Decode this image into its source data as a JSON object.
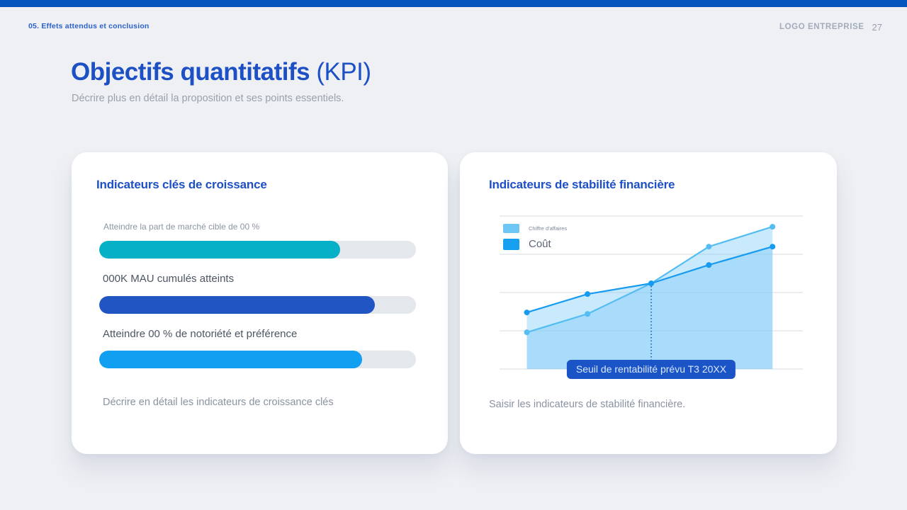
{
  "theme": {
    "accent_bar": "#0455be",
    "title_blue": "#1d50c4",
    "page_bg": "#eef0f4",
    "card_bg": "#ffffff",
    "track": "#e4e7ec",
    "tooltip_bg": "#1b54c6",
    "grid": "#d9dbdf"
  },
  "page": {
    "breadcrumb": "05. Effets attendus et conclusion",
    "logo": "LOGO ENTREPRISE",
    "page_number": "27",
    "title_main": "Objectifs quantitatifs",
    "title_suffix": " (KPI)",
    "subtitle": "Décrire plus en détail la proposition et ses points essentiels."
  },
  "growth_card": {
    "title": "Indicateurs clés de croissance",
    "bars": [
      {
        "label": "Atteindre la part de marché cible de 00 %",
        "value_pct": 76,
        "color": "#06b0c7"
      },
      {
        "label": "000K MAU cumulés atteints",
        "value_pct": 87,
        "color": "#2155c4"
      },
      {
        "label": "Atteindre 00 % de notoriété et préférence",
        "value_pct": 83,
        "color": "#119ff2"
      }
    ],
    "footer": "Décrire en détail les indicateurs de croissance clés"
  },
  "stability_card": {
    "title": "Indicateurs de stabilité financière",
    "footer": "Saisir les indicateurs de stabilité financière."
  },
  "chart_data": {
    "type": "area",
    "title": "Indicateurs de stabilité financière",
    "x_pct": [
      9,
      29,
      50,
      69,
      90
    ],
    "series": [
      {
        "name": "Chiffre d'affaires",
        "values_pct": [
          24,
          36,
          56,
          80,
          93
        ],
        "line_color": "#55bdf2",
        "fill_color": "rgba(126,203,247,0.42)"
      },
      {
        "name": "Coût",
        "values_pct": [
          37,
          49,
          56,
          68,
          80
        ],
        "line_color": "#169bf0",
        "fill_color": "rgba(126,203,247,0.42)"
      }
    ],
    "gridline_count": 5,
    "grid_on": true,
    "ylim_pct": [
      0,
      100
    ],
    "breakeven_x_pct": 50,
    "breakeven_value_pct": 56,
    "annotation": "Seuil de rentabilité prévu T3 20XX",
    "legend_position": "top-left",
    "legend": [
      {
        "label": "Chiffre d'affaires",
        "color": "#6ec6f4"
      },
      {
        "label": "Coût",
        "color": "#18a0f0"
      }
    ]
  }
}
